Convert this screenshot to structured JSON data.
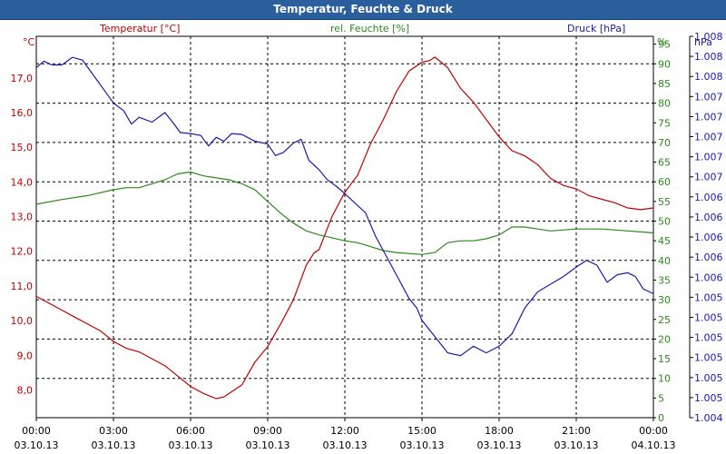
{
  "window": {
    "title": "Temperatur, Feuchte & Druck"
  },
  "colors": {
    "temperature": "#c00000",
    "humidity": "#2a8a1a",
    "pressure": "#1a1ab0",
    "titlebar": "#2a5e9c",
    "grid": "#000000"
  },
  "chart_data": {
    "type": "line",
    "title": "Temperatur, Feuchte & Druck",
    "grid": true,
    "x_range": [
      "03.10.13 00:00",
      "04.10.13 00:00"
    ],
    "x_ticks": [
      {
        "time": "00:00",
        "date": "03.10.13",
        "hour": 0
      },
      {
        "time": "03:00",
        "date": "03.10.13",
        "hour": 3
      },
      {
        "time": "06:00",
        "date": "03.10.13",
        "hour": 6
      },
      {
        "time": "09:00",
        "date": "03.10.13",
        "hour": 9
      },
      {
        "time": "12:00",
        "date": "03.10.13",
        "hour": 12
      },
      {
        "time": "15:00",
        "date": "03.10.13",
        "hour": 15
      },
      {
        "time": "18:00",
        "date": "03.10.13",
        "hour": 18
      },
      {
        "time": "21:00",
        "date": "03.10.13",
        "hour": 21
      },
      {
        "time": "00:00",
        "date": "04.10.13",
        "hour": 24
      }
    ],
    "axes": {
      "temperature": {
        "label": "Temperatur [°C]",
        "unit": "°C",
        "range": [
          7.2,
          18.2
        ],
        "ticks": [
          "8,0",
          "9,0",
          "10,0",
          "11,0",
          "12,0",
          "13,0",
          "14,0",
          "15,0",
          "16,0",
          "17,0"
        ],
        "tick_values": [
          8,
          9,
          10,
          11,
          12,
          13,
          14,
          15,
          16,
          17
        ]
      },
      "humidity": {
        "label": "rel. Feuchte [%]",
        "unit": "%",
        "range": [
          0,
          97
        ],
        "ticks": [
          "0",
          "5",
          "10",
          "15",
          "20",
          "25",
          "30",
          "35",
          "40",
          "45",
          "50",
          "55",
          "60",
          "65",
          "70",
          "75",
          "80",
          "85",
          "90",
          "95"
        ],
        "tick_values": [
          0,
          5,
          10,
          15,
          20,
          25,
          30,
          35,
          40,
          45,
          50,
          55,
          60,
          65,
          70,
          75,
          80,
          85,
          90,
          95
        ]
      },
      "pressure": {
        "label": "Druck [hPa]",
        "unit": "hPa",
        "range": [
          1004.3,
          1008.3
        ],
        "ticks": [
          "1.004",
          "1.005",
          "1.005",
          "1.005",
          "1.005",
          "1.005",
          "1.005",
          "1.006",
          "1.006",
          "1.006",
          "1.006",
          "1.006",
          "1.007",
          "1.007",
          "1.007",
          "1.007",
          "1.007",
          "1.008",
          "1.008",
          "1.008"
        ]
      }
    },
    "series": [
      {
        "name": "Temperatur [°C]",
        "axis": "temperature",
        "points": [
          [
            0,
            10.7
          ],
          [
            0.5,
            10.5
          ],
          [
            1,
            10.3
          ],
          [
            1.5,
            10.1
          ],
          [
            2,
            9.9
          ],
          [
            2.5,
            9.7
          ],
          [
            3,
            9.4
          ],
          [
            3.5,
            9.2
          ],
          [
            4,
            9.1
          ],
          [
            4.5,
            8.9
          ],
          [
            5,
            8.7
          ],
          [
            5.5,
            8.4
          ],
          [
            6,
            8.1
          ],
          [
            6.5,
            7.9
          ],
          [
            7,
            7.75
          ],
          [
            7.3,
            7.8
          ],
          [
            7.6,
            7.95
          ],
          [
            8,
            8.15
          ],
          [
            8.5,
            8.8
          ],
          [
            9,
            9.25
          ],
          [
            9.5,
            9.9
          ],
          [
            10,
            10.6
          ],
          [
            10.5,
            11.6
          ],
          [
            10.8,
            11.95
          ],
          [
            11,
            12.05
          ],
          [
            11.5,
            13.0
          ],
          [
            12,
            13.7
          ],
          [
            12.5,
            14.2
          ],
          [
            13,
            15.1
          ],
          [
            13.5,
            15.8
          ],
          [
            14,
            16.6
          ],
          [
            14.5,
            17.2
          ],
          [
            15,
            17.45
          ],
          [
            15.3,
            17.5
          ],
          [
            15.5,
            17.6
          ],
          [
            16,
            17.3
          ],
          [
            16.5,
            16.7
          ],
          [
            17,
            16.3
          ],
          [
            17.5,
            15.8
          ],
          [
            18,
            15.3
          ],
          [
            18.5,
            14.9
          ],
          [
            19,
            14.75
          ],
          [
            19.5,
            14.5
          ],
          [
            20,
            14.1
          ],
          [
            20.5,
            13.9
          ],
          [
            21,
            13.8
          ],
          [
            21.5,
            13.6
          ],
          [
            22,
            13.5
          ],
          [
            22.5,
            13.4
          ],
          [
            23,
            13.25
          ],
          [
            23.5,
            13.2
          ],
          [
            24,
            13.25
          ]
        ]
      },
      {
        "name": "rel. Feuchte [%]",
        "axis": "humidity",
        "points": [
          [
            0,
            54.3
          ],
          [
            1,
            55.5
          ],
          [
            2,
            56.5
          ],
          [
            3,
            58
          ],
          [
            3.5,
            58.5
          ],
          [
            4,
            58.5
          ],
          [
            4.5,
            59.5
          ],
          [
            5,
            60.5
          ],
          [
            5.5,
            62
          ],
          [
            6,
            62.5
          ],
          [
            6.5,
            61.5
          ],
          [
            7,
            61
          ],
          [
            7.5,
            60.5
          ],
          [
            8,
            59.5
          ],
          [
            8.5,
            58
          ],
          [
            9,
            55
          ],
          [
            9.5,
            52
          ],
          [
            10,
            49.5
          ],
          [
            10.5,
            47.5
          ],
          [
            11,
            46.5
          ],
          [
            12,
            45
          ],
          [
            12.5,
            44.5
          ],
          [
            13,
            43.5
          ],
          [
            13.5,
            42.5
          ],
          [
            14,
            42
          ],
          [
            15,
            41.5
          ],
          [
            15.5,
            42
          ],
          [
            16,
            44.5
          ],
          [
            16.5,
            45
          ],
          [
            17,
            45
          ],
          [
            17.5,
            45.5
          ],
          [
            18,
            46.5
          ],
          [
            18.5,
            48.5
          ],
          [
            19,
            48.5
          ],
          [
            19.5,
            48
          ],
          [
            20,
            47.5
          ],
          [
            21,
            48
          ],
          [
            22,
            48
          ],
          [
            23,
            47.5
          ],
          [
            24,
            47
          ]
        ]
      },
      {
        "name": "Druck [hPa]",
        "axis": "pressure",
        "points": [
          [
            0,
            1007.97
          ],
          [
            0.3,
            1008.04
          ],
          [
            0.6,
            1008.0
          ],
          [
            1,
            1008.0
          ],
          [
            1.4,
            1008.08
          ],
          [
            1.8,
            1008.05
          ],
          [
            2.2,
            1007.9
          ],
          [
            2.6,
            1007.75
          ],
          [
            3,
            1007.6
          ],
          [
            3.4,
            1007.52
          ],
          [
            3.7,
            1007.38
          ],
          [
            4,
            1007.45
          ],
          [
            4.5,
            1007.4
          ],
          [
            5,
            1007.5
          ],
          [
            5.3,
            1007.4
          ],
          [
            5.6,
            1007.29
          ],
          [
            6,
            1007.28
          ],
          [
            6.4,
            1007.26
          ],
          [
            6.7,
            1007.15
          ],
          [
            7,
            1007.24
          ],
          [
            7.3,
            1007.2
          ],
          [
            7.6,
            1007.28
          ],
          [
            8,
            1007.27
          ],
          [
            8.5,
            1007.2
          ],
          [
            9,
            1007.17
          ],
          [
            9.3,
            1007.05
          ],
          [
            9.6,
            1007.08
          ],
          [
            10,
            1007.18
          ],
          [
            10.3,
            1007.22
          ],
          [
            10.6,
            1007.0
          ],
          [
            11,
            1006.9
          ],
          [
            11.3,
            1006.8
          ],
          [
            11.7,
            1006.72
          ],
          [
            12,
            1006.65
          ],
          [
            12.4,
            1006.55
          ],
          [
            12.8,
            1006.45
          ],
          [
            13.2,
            1006.2
          ],
          [
            13.6,
            1006.0
          ],
          [
            14,
            1005.8
          ],
          [
            14.5,
            1005.55
          ],
          [
            14.8,
            1005.45
          ],
          [
            15,
            1005.32
          ],
          [
            15.5,
            1005.15
          ],
          [
            16,
            1004.98
          ],
          [
            16.5,
            1004.95
          ],
          [
            17,
            1005.05
          ],
          [
            17.5,
            1004.98
          ],
          [
            18,
            1005.05
          ],
          [
            18.5,
            1005.18
          ],
          [
            19,
            1005.45
          ],
          [
            19.5,
            1005.62
          ],
          [
            20,
            1005.7
          ],
          [
            20.5,
            1005.78
          ],
          [
            21,
            1005.88
          ],
          [
            21.4,
            1005.95
          ],
          [
            21.8,
            1005.9
          ],
          [
            22.2,
            1005.72
          ],
          [
            22.6,
            1005.8
          ],
          [
            23,
            1005.82
          ],
          [
            23.3,
            1005.78
          ],
          [
            23.6,
            1005.65
          ],
          [
            24,
            1005.6
          ]
        ]
      }
    ]
  }
}
